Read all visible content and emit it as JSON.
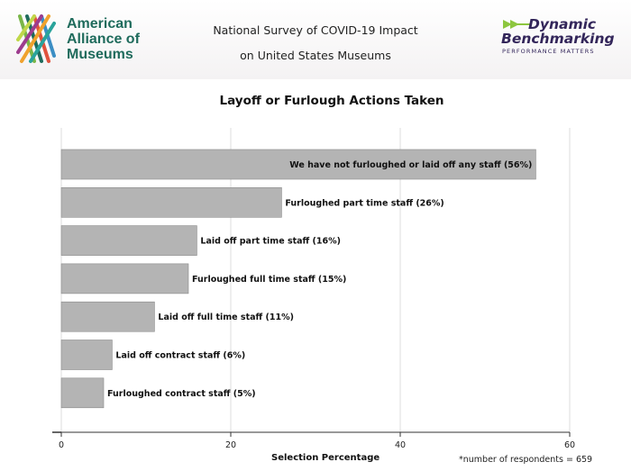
{
  "header": {
    "org_lines": [
      "American",
      "Alliance of",
      "Museums"
    ],
    "survey_title_lines": [
      "National Survey of COVID-19 Impact",
      "on United States Museums"
    ],
    "partner_lines": [
      "Dynamic",
      "Benchmarking"
    ],
    "partner_tagline": "PERFORMANCE MATTERS"
  },
  "colors": {
    "bar": "#b4b4b4",
    "bar_border": "#8a8a8a",
    "grid": "#dddddd",
    "org_green": "#1f6b5c",
    "partner_purple": "#33265a"
  },
  "footnote": "*number of respondents = 659",
  "chart_data": {
    "type": "bar",
    "orientation": "horizontal",
    "title": "Layoff or Furlough Actions Taken",
    "xlabel": "Selection Percentage",
    "ylabel": "",
    "xlim": [
      0,
      60
    ],
    "xticks": [
      0,
      20,
      40,
      60
    ],
    "grid": true,
    "categories": [
      "We have not furloughed or laid off any staff (56%)",
      "Furloughed part time staff (26%)",
      "Laid off part time staff (16%)",
      "Furloughed full time staff (15%)",
      "Laid off full time staff (11%)",
      "Laid off contract staff (6%)",
      "Furloughed contract staff (5%)"
    ],
    "values": [
      56,
      26,
      16,
      15,
      11,
      6,
      5
    ]
  }
}
